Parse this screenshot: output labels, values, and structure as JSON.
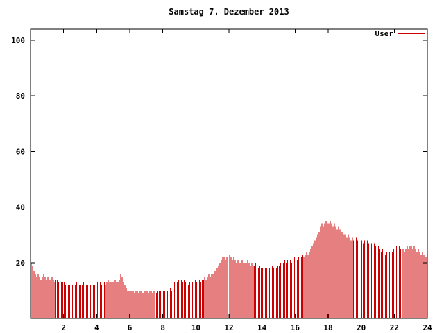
{
  "window": {
    "background": "#ffffff"
  },
  "chart_data": {
    "type": "bar",
    "title": "Samstag 7. Dezember 2013",
    "xlabel": "",
    "ylabel": "",
    "xlim": [
      0,
      24
    ],
    "ylim": [
      0,
      104
    ],
    "xticks": [
      2,
      4,
      6,
      8,
      10,
      12,
      14,
      16,
      18,
      20,
      22,
      24
    ],
    "yticks": [
      20,
      40,
      60,
      80,
      100
    ],
    "grid": false,
    "legend_position": "top-right",
    "sample_interval_hours": 0.0833,
    "series": [
      {
        "name": "User",
        "color": "#cc0000",
        "values": [
          20,
          19,
          17,
          16,
          15,
          16,
          15,
          14,
          15,
          16,
          15,
          14,
          15,
          14,
          14,
          15,
          14,
          13,
          14,
          14,
          13,
          14,
          13,
          13,
          13,
          12,
          13,
          12,
          12,
          13,
          12,
          12,
          12,
          13,
          12,
          12,
          12,
          12,
          13,
          12,
          12,
          12,
          13,
          12,
          12,
          12,
          12,
          null,
          13,
          13,
          13,
          12,
          13,
          13,
          12,
          13,
          14,
          13,
          13,
          13,
          13,
          14,
          13,
          13,
          14,
          16,
          15,
          13,
          12,
          11,
          10,
          10,
          10,
          10,
          10,
          9,
          10,
          10,
          9,
          10,
          10,
          9,
          10,
          10,
          10,
          9,
          10,
          10,
          9,
          10,
          10,
          9,
          10,
          10,
          10,
          9,
          10,
          10,
          11,
          10,
          10,
          11,
          10,
          11,
          13,
          14,
          13,
          14,
          13,
          14,
          13,
          14,
          13,
          13,
          12,
          13,
          12,
          13,
          13,
          14,
          13,
          13,
          14,
          13,
          14,
          14,
          15,
          14,
          15,
          16,
          15,
          16,
          16,
          17,
          17,
          18,
          19,
          20,
          21,
          22,
          22,
          21,
          22,
          null,
          23,
          22,
          21,
          22,
          21,
          20,
          21,
          20,
          20,
          21,
          20,
          20,
          20,
          21,
          20,
          19,
          20,
          19,
          19,
          20,
          19,
          18,
          19,
          18,
          18,
          19,
          18,
          18,
          19,
          18,
          18,
          19,
          18,
          19,
          18,
          19,
          19,
          20,
          19,
          20,
          21,
          20,
          21,
          22,
          21,
          20,
          21,
          22,
          22,
          21,
          22,
          23,
          22,
          23,
          22,
          23,
          24,
          23,
          24,
          25,
          26,
          27,
          28,
          29,
          30,
          31,
          33,
          34,
          33,
          34,
          35,
          34,
          34,
          35,
          34,
          33,
          34,
          33,
          32,
          33,
          32,
          31,
          31,
          30,
          30,
          29,
          30,
          29,
          28,
          29,
          28,
          28,
          29,
          28,
          27,
          null,
          28,
          27,
          28,
          27,
          28,
          27,
          26,
          27,
          26,
          27,
          26,
          26,
          26,
          25,
          24,
          25,
          24,
          23,
          24,
          23,
          24,
          23,
          24,
          25,
          25,
          26,
          25,
          26,
          25,
          26,
          25,
          24,
          25,
          26,
          25,
          26,
          26,
          25,
          26,
          25,
          24,
          25,
          24,
          23,
          24,
          23,
          22,
          22
        ]
      }
    ]
  }
}
